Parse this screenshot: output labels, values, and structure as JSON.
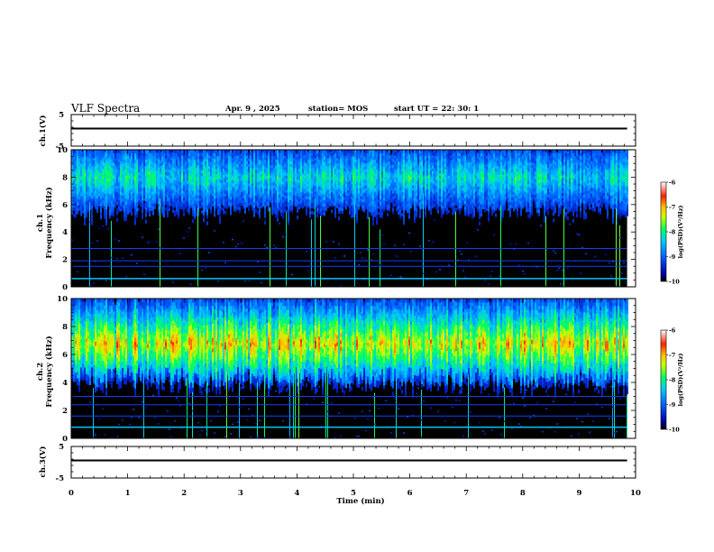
{
  "header": {
    "title": "VLF Spectra",
    "date": "Apr. 9  , 2025",
    "station": "station= MOS",
    "start": "start  UT  =    22: 30: 1"
  },
  "axes": {
    "ch1_label": "ch.1(V)",
    "ch1_spec_label": "ch.1\nFrequency (kHz)",
    "ch2_spec_label": "ch.2\nFrequency (kHz)",
    "ch3_label": "ch.3(V)",
    "xlabel": "Time  (min)",
    "colorbar_label": "log(PSD)(V²/Hz)"
  },
  "colors": {
    "background": "#000000",
    "axis": "#000000",
    "trace": "#000000"
  },
  "chart_data": [
    {
      "type": "line",
      "name": "ch1-waveform",
      "ylabel": "ch.1(V)",
      "ylim": [
        -5,
        5
      ],
      "yticks": [
        "5",
        "-5"
      ],
      "x": [
        0,
        9.85
      ],
      "values": [
        0,
        0
      ]
    },
    {
      "type": "heatmap",
      "name": "ch1-spectrogram",
      "ylabel": "Frequency (kHz)",
      "ylim": [
        0,
        10
      ],
      "yticks": [
        "0",
        "2",
        "4",
        "6",
        "8",
        "10"
      ],
      "xlim": [
        0,
        10
      ],
      "data_end_min": 9.85,
      "band_khz": [
        4.5,
        10
      ],
      "peak_khz": 8,
      "lines_khz": [
        0.6,
        1.5,
        1.9,
        2.8
      ],
      "colorbar": {
        "range": [
          -10,
          -6
        ],
        "ticks": [
          "-6",
          "-7",
          "-8",
          "-9",
          "-10"
        ]
      }
    },
    {
      "type": "heatmap",
      "name": "ch2-spectrogram",
      "ylabel": "Frequency (kHz)",
      "ylim": [
        0,
        10
      ],
      "yticks": [
        "0",
        "2",
        "4",
        "6",
        "8",
        "10"
      ],
      "xlim": [
        0,
        10
      ],
      "data_end_min": 9.85,
      "band_khz": [
        3.5,
        10
      ],
      "peak_khz": 6.8,
      "lines_khz": [
        0.8,
        1.6,
        2.4,
        3.0
      ],
      "colorbar": {
        "range": [
          -10,
          -6
        ],
        "ticks": [
          "-6",
          "-7",
          "-8",
          "-9",
          "-10"
        ]
      }
    },
    {
      "type": "line",
      "name": "ch3-waveform",
      "ylabel": "ch.3(V)",
      "ylim": [
        -5,
        5
      ],
      "yticks": [
        "5",
        "-5"
      ],
      "x": [
        0,
        9.85
      ],
      "values": [
        0,
        0
      ]
    }
  ],
  "xaxis": {
    "xlim": [
      0,
      10
    ],
    "ticks": [
      "0",
      "1",
      "2",
      "3",
      "4",
      "5",
      "6",
      "7",
      "8",
      "9",
      "10"
    ]
  }
}
